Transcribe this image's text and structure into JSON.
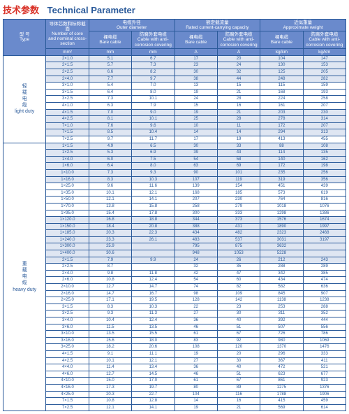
{
  "title_cn": "技术参数",
  "title_en": "Technical Parameter",
  "headers": {
    "type_cn": "型 号",
    "type_en": "Type",
    "core_cn": "导体芯数和标称截面",
    "core_en": "Number of core and nominal cross-section",
    "core_unit": "mm²",
    "od_cn": "电缆外径",
    "od_en": "Outer diameter",
    "bare_cn": "裸电缆",
    "bare_en": "Bare cable",
    "bare_unit": "mm",
    "cov_cn": "防腐外套电缆",
    "cov_en": "Cable with anti-corrosion covering",
    "cov_unit": "mm",
    "rated_cn": "额定载流量",
    "rated_en": "Rated current-carrying capacity",
    "rated_unit": "A",
    "wt_cn": "近似重量",
    "wt_en": "Approximate weight",
    "wt_unit": "kg/km"
  },
  "groups": [
    {
      "label_cn": "轻载电缆",
      "label_en": "light duty",
      "band": [
        0,
        1,
        2,
        3,
        8,
        9,
        10,
        11
      ],
      "rows": [
        [
          "2×1.0",
          "5.1",
          "6.7",
          "17",
          "20",
          "104",
          "147"
        ],
        [
          "2×1.5",
          "5.7",
          "7.3",
          "23",
          "24",
          "130",
          "153"
        ],
        [
          "2×2.5",
          "6.6",
          "8.2",
          "30",
          "32",
          "125",
          "205"
        ],
        [
          "2×4.0",
          "7.7",
          "9.7",
          "38",
          "44",
          "248",
          "282"
        ],
        [
          "3×1.0",
          "5.4",
          "7.0",
          "13",
          "15",
          "115",
          "159"
        ],
        [
          "3×1.5",
          "6.4",
          "8.0",
          "19",
          "21",
          "168",
          "193"
        ],
        [
          "3×2.5",
          "7.3",
          "10.1",
          "24",
          "28",
          "224",
          "258"
        ],
        [
          "4×1.0",
          "6.3",
          "7.9",
          "15",
          "16",
          "161",
          "207"
        ],
        [
          "4×1.5",
          "7.0",
          "9.0",
          "19",
          "21",
          "203",
          "230"
        ],
        [
          "4×2.5",
          "8.1",
          "10.1",
          "25",
          "28",
          "278",
          "314"
        ],
        [
          "7×1.0",
          "7.6",
          "9.6",
          "10",
          "11",
          "172",
          "207"
        ],
        [
          "7×1.5",
          "8.5",
          "10.4",
          "14",
          "14",
          "294",
          "313"
        ],
        [
          "7×2.5",
          "9.7",
          "11.7",
          "17",
          "19",
          "413",
          "455"
        ]
      ]
    },
    {
      "label_cn": "重载电缆",
      "label_en": "heavy duty",
      "band": [
        0,
        1,
        2,
        3,
        4,
        5,
        11,
        12,
        13,
        14,
        15,
        16,
        17
      ],
      "rows": [
        [
          "1×1.5",
          "4.9",
          "6.5",
          "30",
          "33",
          "88",
          "108"
        ],
        [
          "1×2.5",
          "5.3",
          "6.9",
          "39",
          "43",
          "114",
          "135"
        ],
        [
          "1×4.0",
          "6.0",
          "7.5",
          "54",
          "58",
          "140",
          "162"
        ],
        [
          "1×6.0",
          "6.4",
          "8.0",
          "63",
          "69",
          "172",
          "198"
        ],
        [
          "1×10.0",
          "7.3",
          "9.3",
          "90",
          "101",
          "235",
          "256"
        ],
        [
          "1×16.0",
          "8.3",
          "10.3",
          "107",
          "119",
          "319",
          "356"
        ],
        [
          "1×25.0",
          "9.6",
          "11.6",
          "139",
          "154",
          "451",
          "439"
        ],
        [
          "1×35.0",
          "10.1",
          "12.1",
          "168",
          "185",
          "573",
          "619"
        ],
        [
          "1×50.0",
          "12.1",
          "14.1",
          "207",
          "230",
          "764",
          "816"
        ],
        [
          "1×70.0",
          "13.8",
          "15.8",
          "258",
          "279",
          "1018",
          "1076"
        ],
        [
          "1×95.0",
          "15.4",
          "17.8",
          "300",
          "333",
          "1298",
          "1386"
        ],
        [
          "1×120.0",
          "16.8",
          "18.8",
          "344",
          "373",
          "1576",
          "1674"
        ],
        [
          "1×150.0",
          "18.4",
          "20.8",
          "388",
          "431",
          "1890",
          "1997"
        ],
        [
          "1×185.0",
          "20.3",
          "22.3",
          "434",
          "482",
          "2323",
          "2468"
        ],
        [
          "1×240.0",
          "23.3",
          "26.1",
          "483",
          "537",
          "3031",
          "3197"
        ],
        [
          "1×300.0",
          "25.9",
          "",
          "795",
          "875",
          "3632",
          ""
        ],
        [
          "1×400.0",
          "30.6",
          "",
          "948",
          "1053",
          "5228",
          ""
        ],
        [
          "2×1.5",
          "7.9",
          "9.9",
          "24",
          "26",
          "212",
          "243"
        ],
        [
          "2×2.5",
          "8.7",
          "",
          "32",
          "35",
          "288",
          "289"
        ],
        [
          "2×4.0",
          "9.8",
          "11.8",
          "42",
          "47",
          "342",
          "385"
        ],
        [
          "2×6.0",
          "10.8",
          "12.4",
          "54",
          "60",
          "434",
          "474"
        ],
        [
          "2×10.0",
          "12.7",
          "14.7",
          "74",
          "82",
          "582",
          "636"
        ],
        [
          "2×16.0",
          "14.7",
          "16.7",
          "98",
          "109",
          "845",
          "907"
        ],
        [
          "2×25.0",
          "17.1",
          "19.5",
          "128",
          "142",
          "1138",
          "1238"
        ],
        [
          "3×1.5",
          "8.3",
          "10.3",
          "22",
          "23",
          "253",
          "288"
        ],
        [
          "3×2.5",
          "9.3",
          "11.3",
          "27",
          "30",
          "311",
          "352"
        ],
        [
          "3×4.0",
          "10.4",
          "12.4",
          "36",
          "40",
          "392",
          "444"
        ],
        [
          "3×6.0",
          "11.5",
          "13.5",
          "46",
          "51",
          "507",
          "556"
        ],
        [
          "3×10.0",
          "13.5",
          "15.5",
          "61",
          "67",
          "726",
          "786"
        ],
        [
          "3×16.0",
          "15.6",
          "18.0",
          "83",
          "92",
          "980",
          "1069"
        ],
        [
          "3×25.0",
          "18.2",
          "20.6",
          "108",
          "120",
          "1370",
          "1476"
        ],
        [
          "4×1.5",
          "9.1",
          "11.1",
          "19",
          "20",
          "296",
          "333"
        ],
        [
          "4×2.5",
          "10.1",
          "12.1",
          "27",
          "30",
          "367",
          "411"
        ],
        [
          "4×4.0",
          "11.4",
          "13.4",
          "36",
          "40",
          "472",
          "521"
        ],
        [
          "4×6.0",
          "12.7",
          "14.5",
          "46",
          "51",
          "623",
          "677"
        ],
        [
          "4×10.0",
          "15.0",
          "17.0",
          "61",
          "67",
          "861",
          "923"
        ],
        [
          "4×16.0",
          "17.3",
          "19.7",
          "80",
          "89",
          "1275",
          "1376"
        ],
        [
          "4×25.0",
          "20.3",
          "22.7",
          "104",
          "116",
          "1788",
          "1906"
        ],
        [
          "7×1.5",
          "10.8",
          "12.8",
          "14",
          "16",
          "415",
          "459"
        ],
        [
          "7×2.5",
          "12.1",
          "14.1",
          "19",
          "21",
          "569",
          "614"
        ]
      ]
    }
  ]
}
